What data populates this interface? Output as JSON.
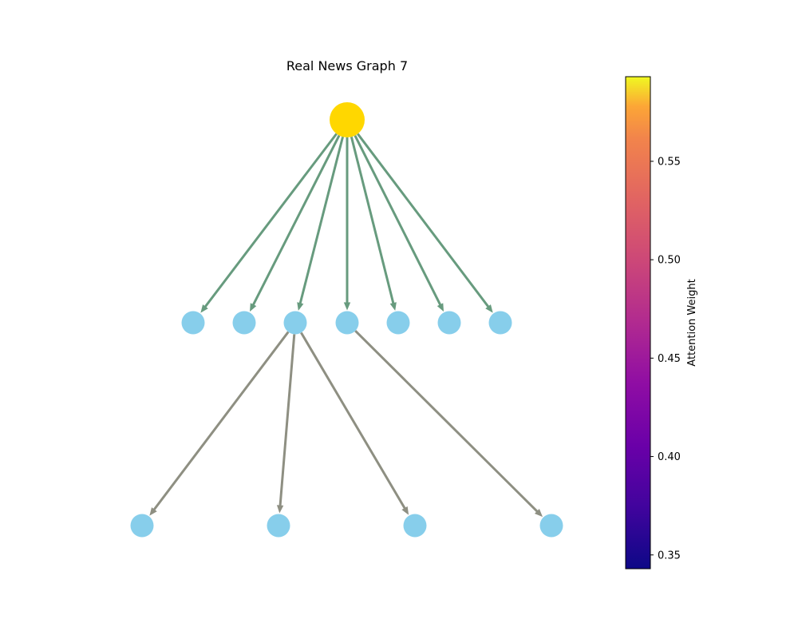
{
  "title": "Real News Graph 7",
  "colorbar": {
    "label": "Attention Weight",
    "ticks": [
      "0.35",
      "0.40",
      "0.45",
      "0.50",
      "0.55"
    ],
    "tick_values": [
      0.35,
      0.4,
      0.45,
      0.5,
      0.55
    ],
    "range": [
      0.343,
      0.593
    ],
    "colormap": "plasma"
  },
  "colors": {
    "root_node": "#FFD700",
    "child_node": "#87CEEB",
    "edge_level1": "#679b7e",
    "edge_level2": "#8e8f82"
  },
  "nodes": [
    {
      "id": 0,
      "kind": "root"
    },
    {
      "id": 1,
      "kind": "child"
    },
    {
      "id": 2,
      "kind": "child"
    },
    {
      "id": 3,
      "kind": "child"
    },
    {
      "id": 4,
      "kind": "child"
    },
    {
      "id": 5,
      "kind": "child"
    },
    {
      "id": 6,
      "kind": "child"
    },
    {
      "id": 7,
      "kind": "child"
    },
    {
      "id": 8,
      "kind": "child"
    },
    {
      "id": 9,
      "kind": "child"
    },
    {
      "id": 10,
      "kind": "child"
    },
    {
      "id": 11,
      "kind": "child"
    }
  ],
  "edges": [
    {
      "from": 0,
      "to": 1,
      "level": 1
    },
    {
      "from": 0,
      "to": 2,
      "level": 1
    },
    {
      "from": 0,
      "to": 3,
      "level": 1
    },
    {
      "from": 0,
      "to": 4,
      "level": 1
    },
    {
      "from": 0,
      "to": 5,
      "level": 1
    },
    {
      "from": 0,
      "to": 6,
      "level": 1
    },
    {
      "from": 0,
      "to": 7,
      "level": 1
    },
    {
      "from": 3,
      "to": 8,
      "level": 2
    },
    {
      "from": 3,
      "to": 9,
      "level": 2
    },
    {
      "from": 3,
      "to": 10,
      "level": 2
    },
    {
      "from": 4,
      "to": 11,
      "level": 2
    }
  ]
}
